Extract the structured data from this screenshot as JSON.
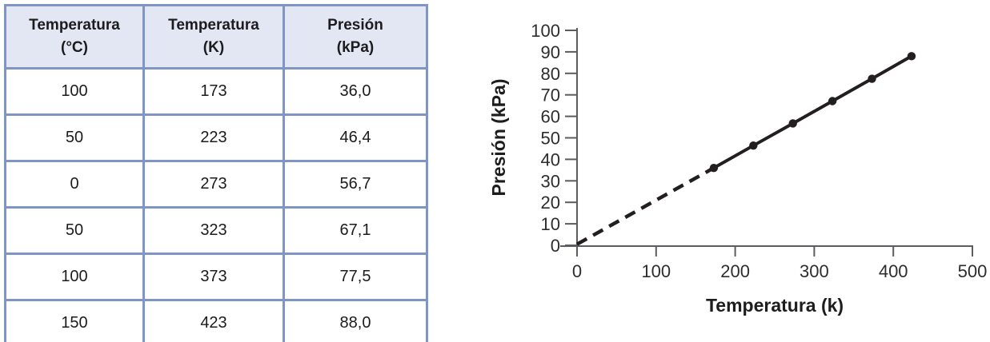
{
  "table": {
    "columns": [
      "Temperatura\n(°C)",
      "Temperatura\n(K)",
      "Presión\n(kPa)"
    ],
    "rows": [
      [
        "100",
        "173",
        "36,0"
      ],
      [
        "50",
        "223",
        "46,4"
      ],
      [
        "0",
        "273",
        "56,7"
      ],
      [
        "50",
        "323",
        "67,1"
      ],
      [
        "100",
        "373",
        "77,5"
      ],
      [
        "150",
        "423",
        "88,0"
      ]
    ],
    "border_color": "#7f95c6",
    "header_bg": "#e3e6f3"
  },
  "chart_data": {
    "type": "line",
    "title": "",
    "xlabel": "Temperatura (k)",
    "ylabel": "Presión (kPa)",
    "xlim": [
      0,
      500
    ],
    "ylim": [
      0,
      100
    ],
    "xticks": [
      0,
      100,
      200,
      300,
      400,
      500
    ],
    "yticks": [
      0,
      10,
      20,
      30,
      40,
      50,
      60,
      70,
      80,
      90,
      100
    ],
    "grid": false,
    "legend": false,
    "line_color": "#231f20",
    "axis_color": "#5c5c60",
    "series": [
      {
        "name": "measured-data",
        "style": "solid",
        "markers": true,
        "x": [
          173,
          223,
          273,
          323,
          373,
          423
        ],
        "y": [
          36.0,
          46.4,
          56.7,
          67.1,
          77.5,
          88.0
        ]
      },
      {
        "name": "extrapolation-to-zero",
        "style": "dashed",
        "markers": false,
        "x": [
          0,
          173
        ],
        "y": [
          0.5,
          36.0
        ]
      }
    ]
  }
}
